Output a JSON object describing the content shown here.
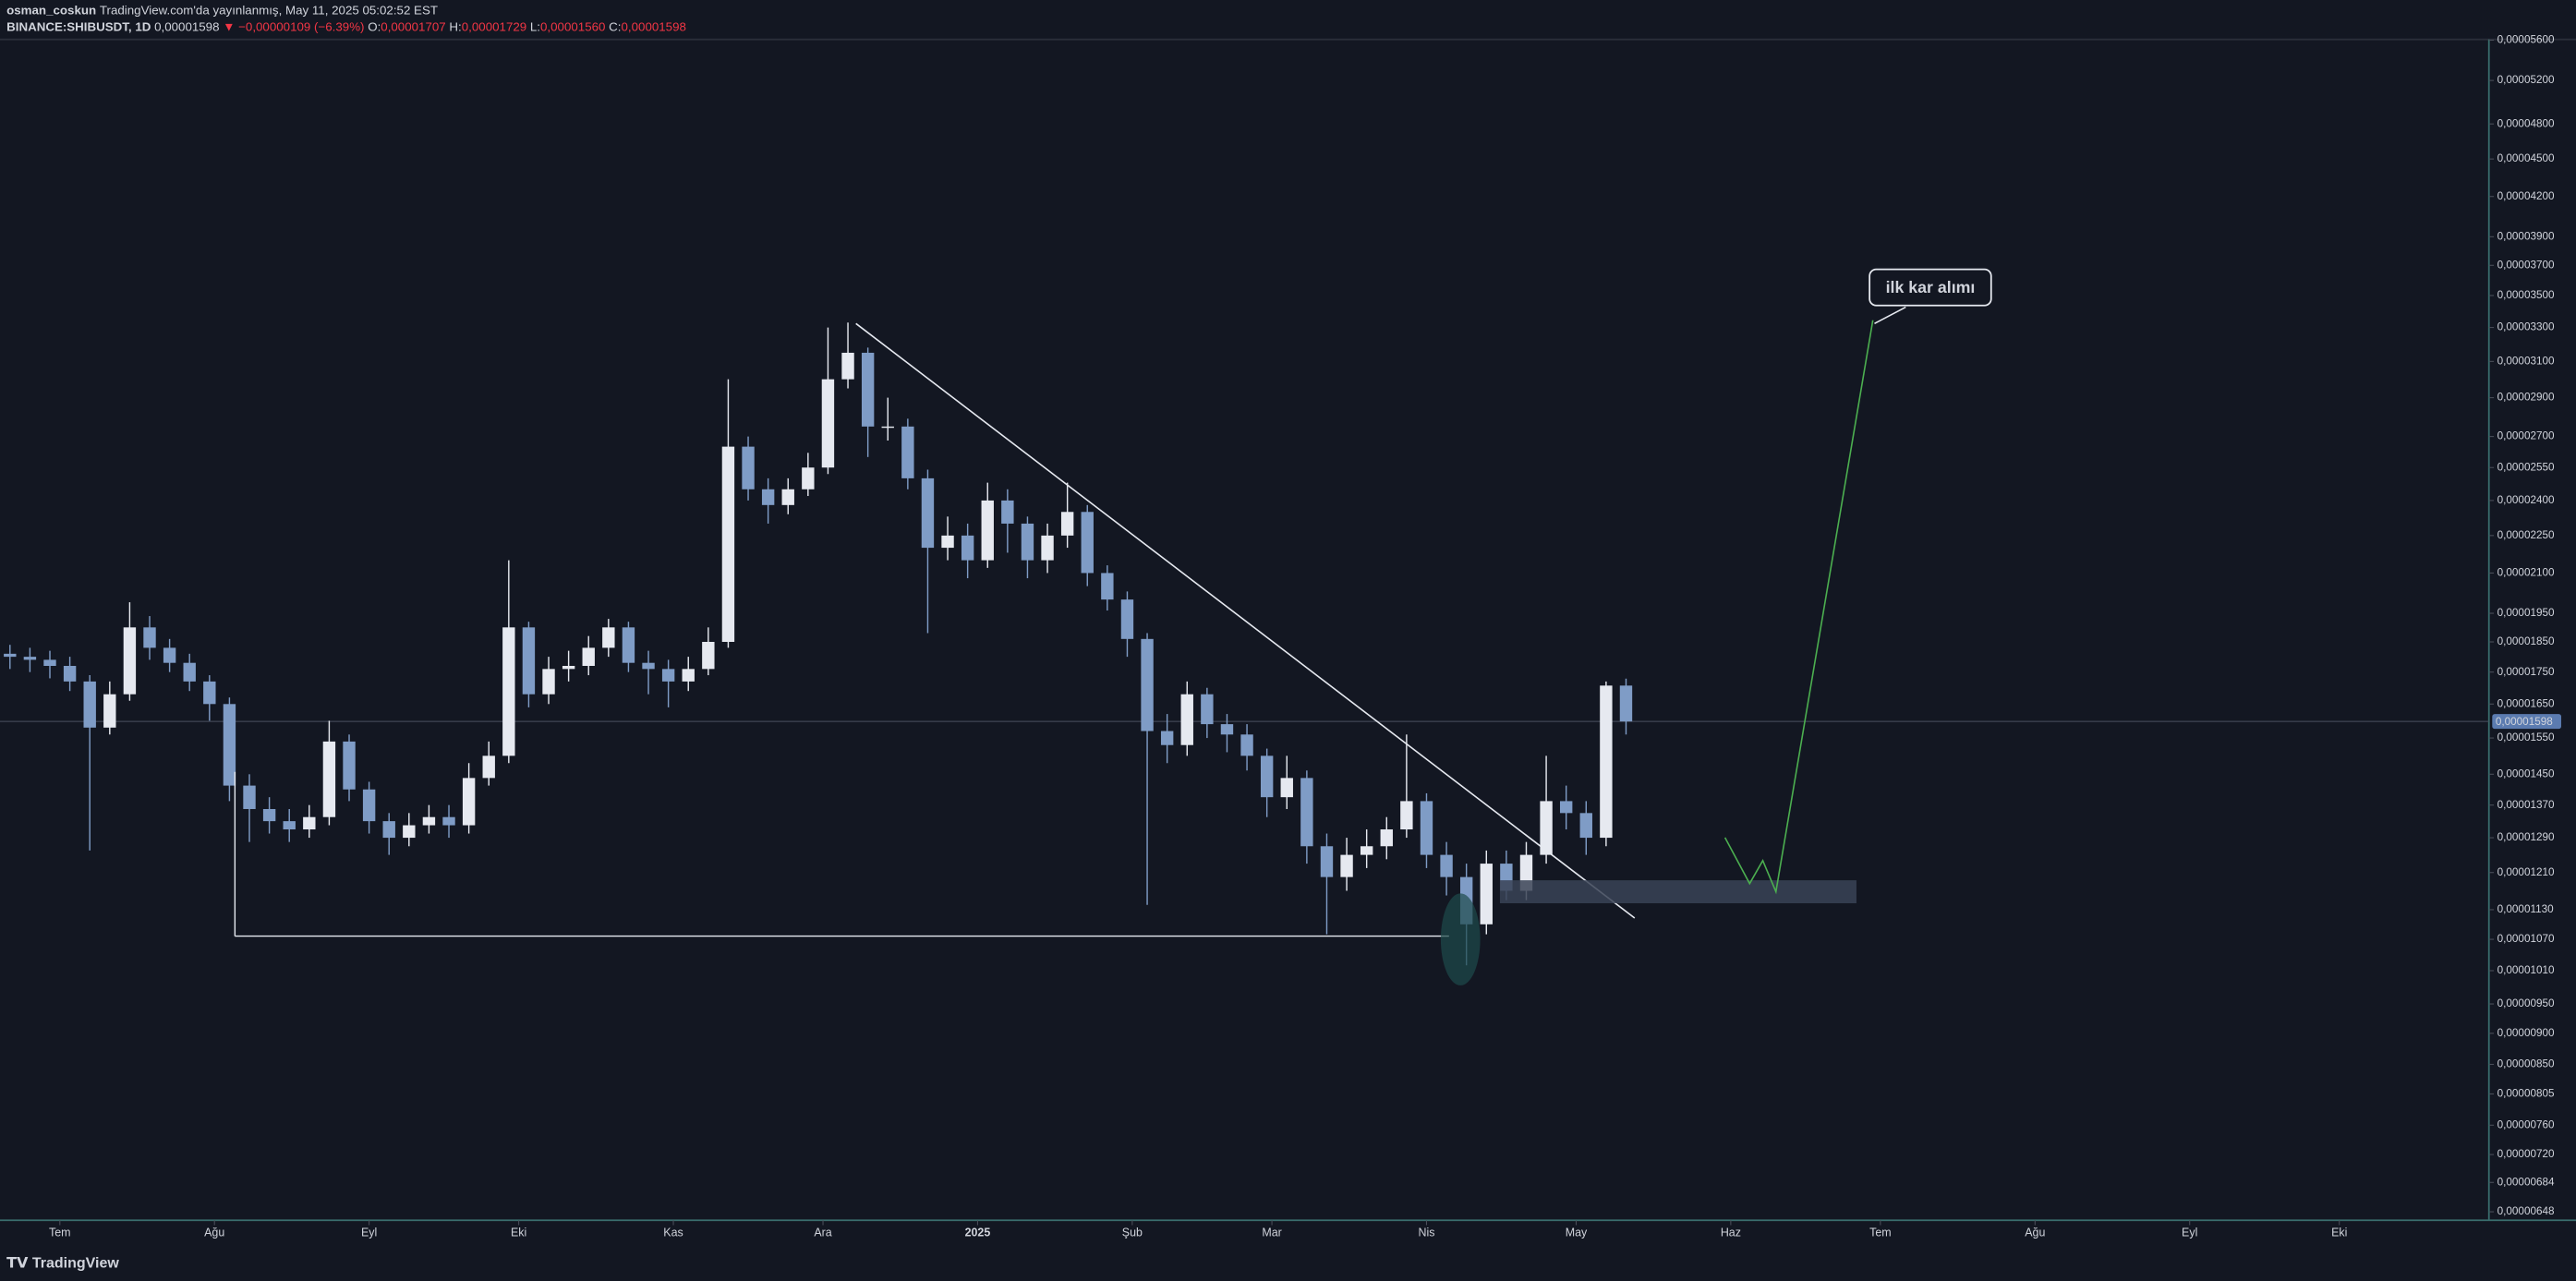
{
  "header": {
    "author": "osman_coskun",
    "published": "TradingView.com'da yayınlanmış, May 11, 2025 05:02:52 EST",
    "symbol": "BINANCE:SHIBUSDT, 1D",
    "price": "0,00001598",
    "change": "▼ −0,00000109 (−6.39%)",
    "ohlc": [
      {
        "key": "O:",
        "value": "0,00001707"
      },
      {
        "key": "H:",
        "value": "0,00001729"
      },
      {
        "key": "L:",
        "value": "0,00001560"
      },
      {
        "key": "C:",
        "value": "0,00001598"
      }
    ]
  },
  "chart_data": {
    "type": "candlestick",
    "log_scale": true,
    "grid": false,
    "up_color": "#e6e9f0",
    "down_color": "#7f9cc6",
    "x": [
      -10,
      -6,
      -2,
      2,
      6,
      10,
      14,
      18,
      22,
      26,
      30,
      34,
      38,
      42,
      46,
      50,
      54,
      58,
      62,
      66,
      70,
      74,
      78,
      82,
      86,
      90,
      94,
      98,
      102,
      106,
      110,
      114,
      118,
      122,
      126,
      130,
      134,
      138,
      142,
      146,
      150,
      154,
      158,
      162,
      166,
      170,
      174,
      178,
      182,
      186,
      190,
      194,
      198,
      202,
      206,
      210,
      214,
      218,
      222,
      226,
      230,
      234,
      238,
      242,
      246,
      250,
      254,
      258,
      262,
      266,
      270,
      274,
      278,
      282,
      286,
      290,
      294,
      298,
      302,
      306,
      310,
      314
    ],
    "open": [
      1.81e-05,
      1.8e-05,
      1.79e-05,
      1.77e-05,
      1.72e-05,
      1.58e-05,
      1.68e-05,
      1.9e-05,
      1.83e-05,
      1.78e-05,
      1.72e-05,
      1.65e-05,
      1.42e-05,
      1.36e-05,
      1.33e-05,
      1.31e-05,
      1.34e-05,
      1.54e-05,
      1.41e-05,
      1.33e-05,
      1.29e-05,
      1.32e-05,
      1.34e-05,
      1.32e-05,
      1.44e-05,
      1.5e-05,
      1.9e-05,
      1.68e-05,
      1.76e-05,
      1.77e-05,
      1.83e-05,
      1.9e-05,
      1.78e-05,
      1.76e-05,
      1.72e-05,
      1.76e-05,
      1.85e-05,
      2.65e-05,
      2.45e-05,
      2.38e-05,
      2.45e-05,
      2.55e-05,
      3e-05,
      3.15e-05,
      2.75e-05,
      2.75e-05,
      2.5e-05,
      2.2e-05,
      2.25e-05,
      2.15e-05,
      2.4e-05,
      2.3e-05,
      2.15e-05,
      2.25e-05,
      2.35e-05,
      2.1e-05,
      2e-05,
      1.86e-05,
      1.57e-05,
      1.53e-05,
      1.68e-05,
      1.59e-05,
      1.56e-05,
      1.5e-05,
      1.39e-05,
      1.44e-05,
      1.27e-05,
      1.2e-05,
      1.25e-05,
      1.27e-05,
      1.31e-05,
      1.38e-05,
      1.25e-05,
      1.2e-05,
      1.1e-05,
      1.23e-05,
      1.17e-05,
      1.25e-05,
      1.38e-05,
      1.35e-05,
      1.29e-05,
      1.707e-05
    ],
    "high": [
      1.84e-05,
      1.83e-05,
      1.82e-05,
      1.8e-05,
      1.74e-05,
      1.72e-05,
      1.99e-05,
      1.94e-05,
      1.86e-05,
      1.81e-05,
      1.74e-05,
      1.67e-05,
      1.45e-05,
      1.39e-05,
      1.36e-05,
      1.37e-05,
      1.6e-05,
      1.56e-05,
      1.43e-05,
      1.35e-05,
      1.35e-05,
      1.37e-05,
      1.37e-05,
      1.48e-05,
      1.54e-05,
      2.15e-05,
      1.92e-05,
      1.8e-05,
      1.82e-05,
      1.87e-05,
      1.93e-05,
      1.92e-05,
      1.82e-05,
      1.79e-05,
      1.8e-05,
      1.9e-05,
      3e-05,
      2.7e-05,
      2.5e-05,
      2.5e-05,
      2.62e-05,
      3.3e-05,
      3.33e-05,
      3.18e-05,
      2.9e-05,
      2.79e-05,
      2.54e-05,
      2.33e-05,
      2.3e-05,
      2.48e-05,
      2.45e-05,
      2.33e-05,
      2.3e-05,
      2.48e-05,
      2.38e-05,
      2.13e-05,
      2.03e-05,
      1.88e-05,
      1.62e-05,
      1.72e-05,
      1.7e-05,
      1.62e-05,
      1.59e-05,
      1.52e-05,
      1.5e-05,
      1.46e-05,
      1.3e-05,
      1.29e-05,
      1.31e-05,
      1.34e-05,
      1.56e-05,
      1.4e-05,
      1.28e-05,
      1.23e-05,
      1.26e-05,
      1.26e-05,
      1.28e-05,
      1.5e-05,
      1.42e-05,
      1.38e-05,
      1.72e-05,
      1.729e-05
    ],
    "low": [
      1.76e-05,
      1.75e-05,
      1.73e-05,
      1.69e-05,
      1.26e-05,
      1.56e-05,
      1.66e-05,
      1.79e-05,
      1.75e-05,
      1.69e-05,
      1.6e-05,
      1.38e-05,
      1.28e-05,
      1.3e-05,
      1.28e-05,
      1.29e-05,
      1.32e-05,
      1.38e-05,
      1.3e-05,
      1.25e-05,
      1.27e-05,
      1.3e-05,
      1.29e-05,
      1.3e-05,
      1.42e-05,
      1.48e-05,
      1.64e-05,
      1.65e-05,
      1.72e-05,
      1.74e-05,
      1.8e-05,
      1.75e-05,
      1.68e-05,
      1.64e-05,
      1.69e-05,
      1.74e-05,
      1.83e-05,
      2.4e-05,
      2.3e-05,
      2.34e-05,
      2.42e-05,
      2.52e-05,
      2.95e-05,
      2.6e-05,
      2.68e-05,
      2.45e-05,
      1.88e-05,
      2.15e-05,
      2.08e-05,
      2.12e-05,
      2.18e-05,
      2.08e-05,
      2.1e-05,
      2.2e-05,
      2.05e-05,
      1.96e-05,
      1.8e-05,
      1.14e-05,
      1.48e-05,
      1.5e-05,
      1.55e-05,
      1.51e-05,
      1.46e-05,
      1.34e-05,
      1.36e-05,
      1.23e-05,
      1.08e-05,
      1.17e-05,
      1.22e-05,
      1.24e-05,
      1.29e-05,
      1.22e-05,
      1.16e-05,
      1.02e-05,
      1.08e-05,
      1.15e-05,
      1.15e-05,
      1.23e-05,
      1.31e-05,
      1.25e-05,
      1.27e-05,
      1.56e-05
    ],
    "close": [
      1.8e-05,
      1.79e-05,
      1.77e-05,
      1.72e-05,
      1.58e-05,
      1.68e-05,
      1.9e-05,
      1.83e-05,
      1.78e-05,
      1.72e-05,
      1.65e-05,
      1.42e-05,
      1.36e-05,
      1.33e-05,
      1.31e-05,
      1.34e-05,
      1.54e-05,
      1.41e-05,
      1.33e-05,
      1.29e-05,
      1.32e-05,
      1.34e-05,
      1.32e-05,
      1.44e-05,
      1.5e-05,
      1.9e-05,
      1.68e-05,
      1.76e-05,
      1.77e-05,
      1.83e-05,
      1.9e-05,
      1.78e-05,
      1.76e-05,
      1.72e-05,
      1.76e-05,
      1.85e-05,
      2.65e-05,
      2.45e-05,
      2.38e-05,
      2.45e-05,
      2.55e-05,
      3e-05,
      3.15e-05,
      2.75e-05,
      2.75e-05,
      2.5e-05,
      2.2e-05,
      2.25e-05,
      2.15e-05,
      2.4e-05,
      2.3e-05,
      2.15e-05,
      2.25e-05,
      2.35e-05,
      2.1e-05,
      2e-05,
      1.86e-05,
      1.57e-05,
      1.53e-05,
      1.68e-05,
      1.59e-05,
      1.56e-05,
      1.5e-05,
      1.39e-05,
      1.44e-05,
      1.27e-05,
      1.2e-05,
      1.25e-05,
      1.27e-05,
      1.31e-05,
      1.38e-05,
      1.25e-05,
      1.2e-05,
      1.1e-05,
      1.23e-05,
      1.17e-05,
      1.25e-05,
      1.38e-05,
      1.35e-05,
      1.29e-05,
      1.707e-05,
      1.598e-05
    ],
    "xlim": [
      -12,
      487
    ],
    "xticks": [
      {
        "value": 0,
        "label": "Tem"
      },
      {
        "value": 31,
        "label": "Ağu"
      },
      {
        "value": 62,
        "label": "Eyl"
      },
      {
        "value": 92,
        "label": "Eki"
      },
      {
        "value": 123,
        "label": "Kas"
      },
      {
        "value": 153,
        "label": "Ara"
      },
      {
        "value": 184,
        "label": "2025"
      },
      {
        "value": 215,
        "label": "Şub"
      },
      {
        "value": 243,
        "label": "Mar"
      },
      {
        "value": 274,
        "label": "Nis"
      },
      {
        "value": 304,
        "label": "May"
      },
      {
        "value": 335,
        "label": "Haz"
      },
      {
        "value": 365,
        "label": "Tem"
      },
      {
        "value": 396,
        "label": "Ağu"
      },
      {
        "value": 427,
        "label": "Eyl"
      },
      {
        "value": 457,
        "label": "Eki"
      }
    ],
    "ylim": [
      6.38e-06,
      5.608e-05
    ],
    "yticks": [
      {
        "value": 5.6e-05,
        "label": "0,00005600"
      },
      {
        "value": 5.2e-05,
        "label": "0,00005200"
      },
      {
        "value": 4.8e-05,
        "label": "0,00004800"
      },
      {
        "value": 4.5e-05,
        "label": "0,00004500"
      },
      {
        "value": 4.2e-05,
        "label": "0,00004200"
      },
      {
        "value": 3.9e-05,
        "label": "0,00003900"
      },
      {
        "value": 3.7e-05,
        "label": "0,00003700"
      },
      {
        "value": 3.5e-05,
        "label": "0,00003500"
      },
      {
        "value": 3.3e-05,
        "label": "0,00003300"
      },
      {
        "value": 3.1e-05,
        "label": "0,00003100"
      },
      {
        "value": 2.9e-05,
        "label": "0,00002900"
      },
      {
        "value": 2.7e-05,
        "label": "0,00002700"
      },
      {
        "value": 2.55e-05,
        "label": "0,00002550"
      },
      {
        "value": 2.4e-05,
        "label": "0,00002400"
      },
      {
        "value": 2.25e-05,
        "label": "0,00002250"
      },
      {
        "value": 2.1e-05,
        "label": "0,00002100"
      },
      {
        "value": 1.95e-05,
        "label": "0,00001950"
      },
      {
        "value": 1.85e-05,
        "label": "0,00001850"
      },
      {
        "value": 1.75e-05,
        "label": "0,00001750"
      },
      {
        "value": 1.65e-05,
        "label": "0,00001650"
      },
      {
        "value": 1.55e-05,
        "label": "0,00001550"
      },
      {
        "value": 1.45e-05,
        "label": "0,00001450"
      },
      {
        "value": 1.37e-05,
        "label": "0,00001370"
      },
      {
        "value": 1.29e-05,
        "label": "0,00001290"
      },
      {
        "value": 1.21e-05,
        "label": "0,00001210"
      },
      {
        "value": 1.13e-05,
        "label": "0,00001130"
      },
      {
        "value": 1.07e-05,
        "label": "0,00001070"
      },
      {
        "value": 1.01e-05,
        "label": "0,00001010"
      },
      {
        "value": 9.5e-06,
        "label": "0,00000950"
      },
      {
        "value": 9e-06,
        "label": "0,00000900"
      },
      {
        "value": 8.5e-06,
        "label": "0,00000850"
      },
      {
        "value": 8.05e-06,
        "label": "0,00000805"
      },
      {
        "value": 7.6e-06,
        "label": "0,00000760"
      },
      {
        "value": 7.2e-06,
        "label": "0,00000720"
      },
      {
        "value": 6.84e-06,
        "label": "0,00000684"
      },
      {
        "value": 6.48e-06,
        "label": "0,00000648"
      }
    ],
    "last_price": {
      "value": 1.598e-05,
      "label": "0,00001598"
    },
    "annotation": "ilk kar alımı"
  },
  "footer": {
    "brand": "TradingView"
  }
}
